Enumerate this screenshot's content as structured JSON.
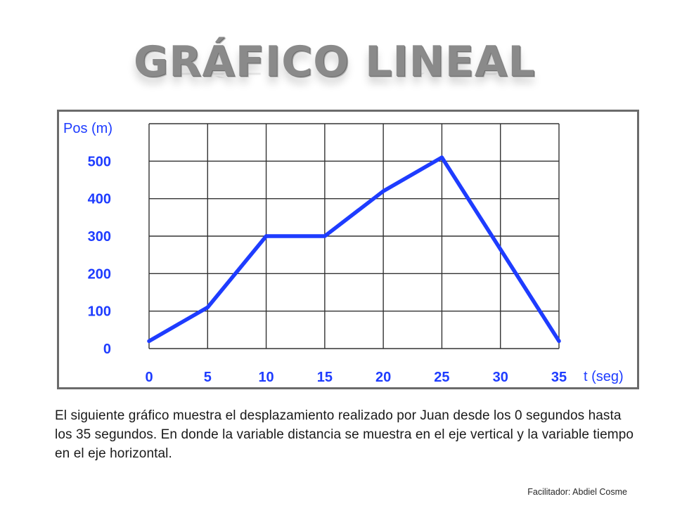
{
  "slide": {
    "title": "GRÁFICO LINEAL",
    "description": "El siguiente gráfico muestra el desplazamiento realizado por Juan desde los 0 segundos hasta los 35 segundos. En donde la variable distancia se muestra en el eje vertical y la variable tiempo en el eje horizontal.",
    "credit": "Facilitador: Abdiel Cosme"
  },
  "chart_data": {
    "type": "line",
    "title": "",
    "xlabel": "t (seg)",
    "ylabel": "Pos (m)",
    "x": [
      0,
      5,
      10,
      15,
      20,
      25,
      35
    ],
    "series": [
      {
        "values": [
          20,
          110,
          300,
          300,
          420,
          510,
          20
        ]
      }
    ],
    "xticks": [
      "0",
      "5",
      "10",
      "15",
      "20",
      "25",
      "30",
      "35"
    ],
    "yticks": [
      "0",
      "100",
      "200",
      "300",
      "400",
      "500"
    ],
    "xlim": [
      0,
      35
    ],
    "ylim": [
      0,
      600
    ],
    "grid": true,
    "line_color": "#1e3cff",
    "label_color": "#1e3cff",
    "grid_color": "#333333"
  }
}
